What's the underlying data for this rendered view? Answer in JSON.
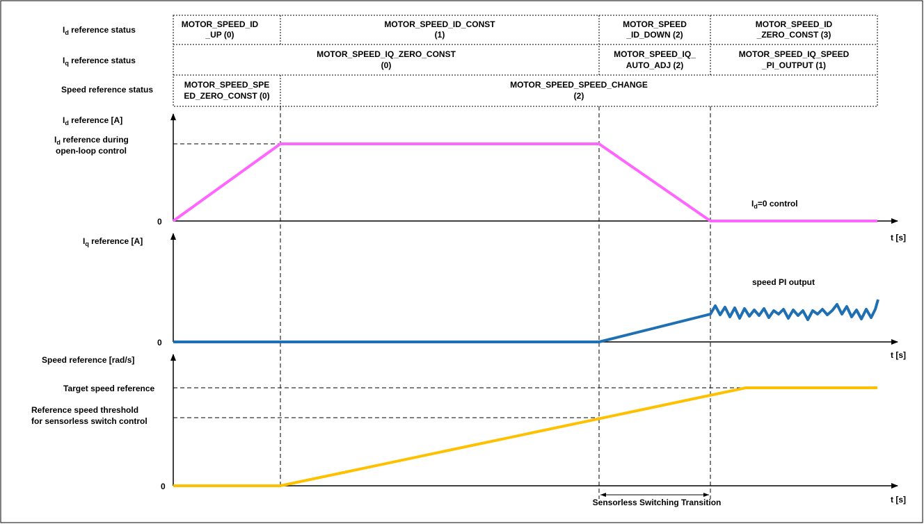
{
  "status_rows": [
    {
      "label_main": "I",
      "label_sub": "d",
      "label_rest": " reference status",
      "cells": [
        {
          "lines": [
            "MOTOR_SPEED_ID",
            "_UP (0)"
          ]
        },
        {
          "lines": [
            "MOTOR_SPEED_ID_CONST",
            "(1)"
          ]
        },
        {
          "lines": [
            "MOTOR_SPEED",
            "_ID_DOWN (2)"
          ]
        },
        {
          "lines": [
            "MOTOR_SPEED_ID",
            "_ZERO_CONST (3)"
          ]
        }
      ]
    },
    {
      "label_main": "I",
      "label_sub": "q",
      "label_rest": " reference status",
      "cells": [
        {
          "lines": [
            "MOTOR_SPEED_IQ_ZERO_CONST",
            "(0)"
          ]
        },
        {
          "lines": [
            "MOTOR_SPEED_IQ_",
            "AUTO_ADJ (2)"
          ]
        },
        {
          "lines": [
            "MOTOR_SPEED_IQ_SPEED",
            "_PI_OUTPUT (1)"
          ]
        }
      ]
    },
    {
      "label_main": "Speed reference status",
      "label_sub": "",
      "label_rest": "",
      "cells": [
        {
          "lines": [
            "MOTOR_SPEED_SPE",
            "ED_ZERO_CONST (0)"
          ]
        },
        {
          "lines": [
            "MOTOR_SPEED_SPEED_CHANGE",
            "(2)"
          ]
        }
      ]
    }
  ],
  "panels": {
    "id": {
      "axis_main": "I",
      "axis_sub": "d",
      "axis_rest": " reference [A]",
      "level_line1_main": "I",
      "level_line1_sub": "d",
      "level_line1_rest": " reference during",
      "level_line2": "open-loop control",
      "zero": "0",
      "annotation_main": "I",
      "annotation_sub": "d",
      "annotation_rest": "=0 control",
      "time": "t [s]",
      "color": "#FF66FF"
    },
    "iq": {
      "axis_main": "I",
      "axis_sub": "q",
      "axis_rest": " reference [A]",
      "zero": "0",
      "annotation": "speed PI output",
      "time": "t [s]",
      "color": "#1F6FB4"
    },
    "speed": {
      "axis_label": "Speed reference [rad/s]",
      "target_label": "Target speed reference",
      "threshold_line1": "Reference speed threshold",
      "threshold_line2": "for sensorless switch control",
      "zero": "0",
      "time": "t [s]",
      "transition_label": "Sensorless Switching Transition",
      "color": "#FFC000"
    }
  }
}
